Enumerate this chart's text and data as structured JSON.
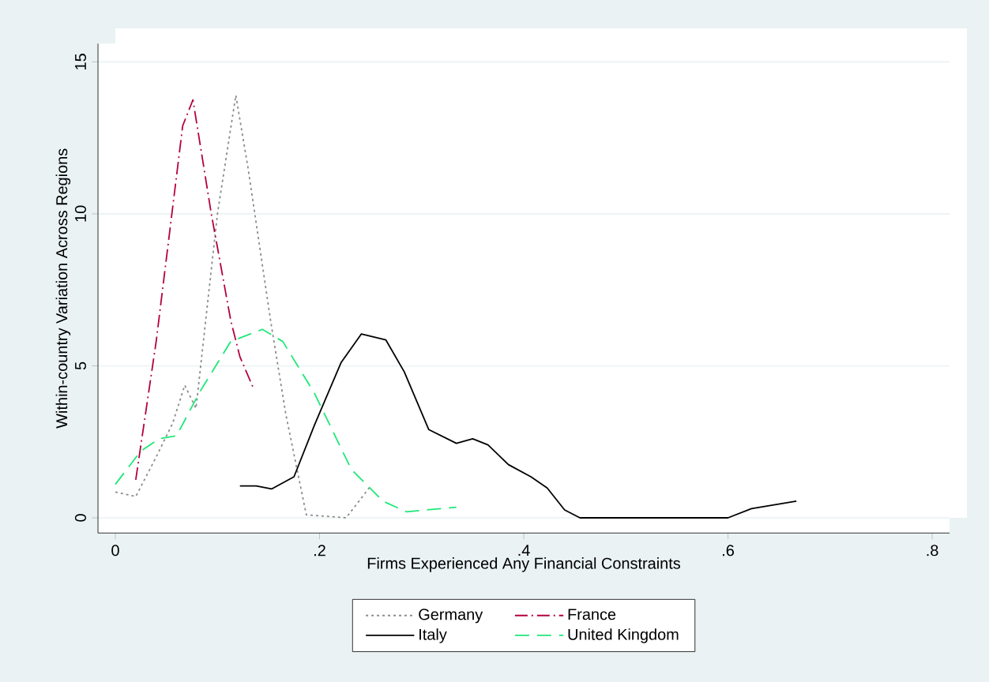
{
  "chart_data": {
    "type": "line",
    "xlabel": "Firms Experienced Any Financial Constraints",
    "ylabel": "Within-country Variation Across Regions",
    "xlim": [
      -0.017,
      0.817
    ],
    "ylim": [
      -0.5,
      15.6
    ],
    "xticks": [
      0,
      {
        "value": 0.2,
        "label": ".2"
      },
      {
        "value": 0.4,
        "label": ".4"
      },
      {
        "value": 0.6,
        "label": ".6"
      },
      {
        "value": 0.8,
        "label": ".8"
      }
    ],
    "yticks": [
      0,
      5,
      10,
      15
    ],
    "grid": "y",
    "legend": "bottom",
    "marker": "none",
    "series": [
      {
        "name": "Germany",
        "color": "#8c8c8c",
        "line_style": "dotted",
        "x": [
          0,
          0.02,
          0.04,
          0.056,
          0.068,
          0.079,
          0.1,
          0.118,
          0.13,
          0.152,
          0.167,
          0.187,
          0.226,
          0.249
        ],
        "values": [
          0.85,
          0.7,
          2.0,
          3.1,
          4.36,
          3.6,
          10.0,
          13.9,
          11.5,
          6.5,
          3.4,
          0.1,
          0,
          1.0
        ]
      },
      {
        "name": "France",
        "color": "#b4003c",
        "line_style": "dashdot",
        "x": [
          0.02,
          0.04,
          0.066,
          0.076,
          0.094,
          0.113,
          0.122,
          0.136
        ],
        "values": [
          1.25,
          5.8,
          12.9,
          13.75,
          10.0,
          6.5,
          5.3,
          4.2
        ]
      },
      {
        "name": "Italy",
        "color": "#000000",
        "line_style": "solid",
        "x": [
          0.122,
          0.138,
          0.153,
          0.175,
          0.195,
          0.221,
          0.241,
          0.265,
          0.283,
          0.307,
          0.334,
          0.35,
          0.365,
          0.385,
          0.407,
          0.423,
          0.44,
          0.455,
          0.6,
          0.623,
          0.667
        ],
        "values": [
          1.05,
          1.05,
          0.95,
          1.35,
          3.05,
          5.1,
          6.05,
          5.85,
          4.8,
          2.9,
          2.45,
          2.6,
          2.4,
          1.75,
          1.35,
          0.98,
          0.26,
          0,
          0,
          0.3,
          0.55
        ]
      },
      {
        "name": "United Kingdom",
        "color": "#1ee878",
        "line_style": "dashed",
        "x": [
          0,
          0.025,
          0.043,
          0.06,
          0.082,
          0.113,
          0.144,
          0.164,
          0.195,
          0.231,
          0.262,
          0.285,
          0.334
        ],
        "values": [
          1.1,
          2.2,
          2.6,
          2.7,
          4.1,
          5.8,
          6.2,
          5.8,
          4.1,
          1.6,
          0.55,
          0.2,
          0.35
        ]
      }
    ]
  }
}
